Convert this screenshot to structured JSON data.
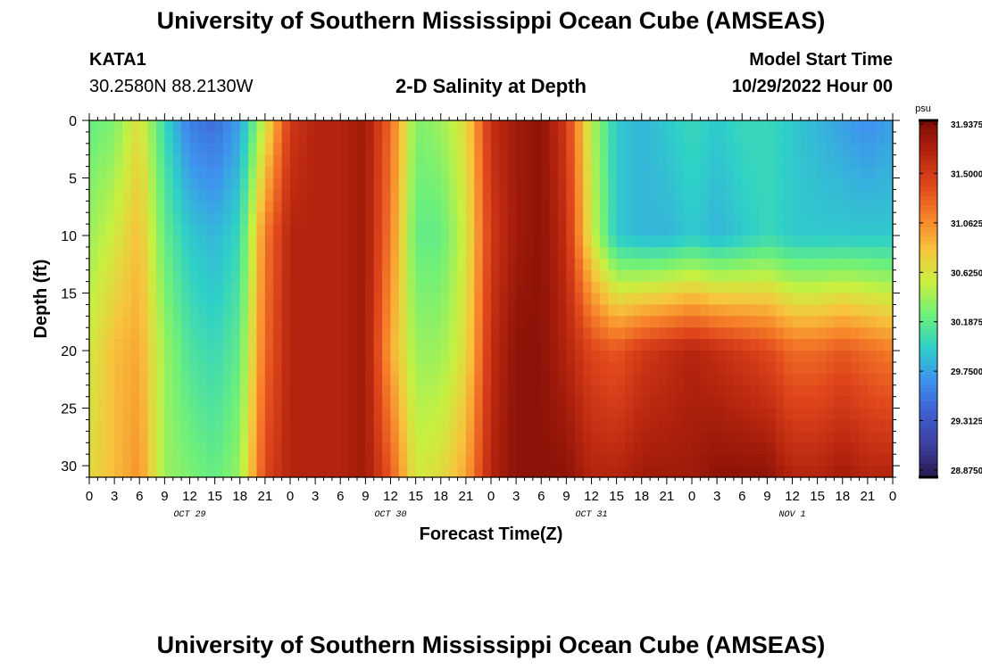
{
  "header": {
    "title": "University of Southern Mississippi Ocean Cube (AMSEAS)",
    "station": "KATA1",
    "coords": "30.2580N  88.2130W",
    "subtitle": "2-D Salinity at Depth",
    "model_start_label": "Model Start Time",
    "model_start_value": "10/29/2022 Hour 00"
  },
  "footer": {
    "title": "University of Southern Mississippi Ocean Cube (AMSEAS)"
  },
  "colors": {
    "background": "#ffffff",
    "axis": "#000000",
    "colormap": [
      "#2a1850",
      "#3c3fa0",
      "#3f5fd0",
      "#3e93ee",
      "#2ed0c8",
      "#6df07a",
      "#c8f040",
      "#f7c43c",
      "#f7822a",
      "#e0471c",
      "#b5240e",
      "#7a0b05"
    ]
  },
  "chart_data": {
    "type": "heatmap",
    "title": "2-D Salinity at Depth",
    "xlabel": "Forecast Time(Z)",
    "ylabel": "Depth (ft)",
    "x_tick_labels": [
      "0",
      "3",
      "6",
      "9",
      "12",
      "15",
      "18",
      "21",
      "0",
      "3",
      "6",
      "9",
      "12",
      "15",
      "18",
      "21",
      "0",
      "3",
      "6",
      "9",
      "12",
      "15",
      "18",
      "21",
      "0",
      "3",
      "6",
      "9",
      "12",
      "15",
      "18",
      "21",
      "0"
    ],
    "date_labels": [
      "OCT 29",
      "OCT 30",
      "OCT 31",
      "NOV 1"
    ],
    "xlim_hours": [
      0,
      96
    ],
    "y_ticks": [
      0,
      5,
      10,
      15,
      20,
      25,
      30
    ],
    "ylim_ft": [
      0,
      31
    ],
    "colorbar": {
      "unit": "psu",
      "labels": [
        "31.9375",
        "31.5000",
        "31.0625",
        "30.6250",
        "30.1875",
        "29.7500",
        "29.3125",
        "28.8750"
      ],
      "vmin": 28.7,
      "vmax": 32.1
    },
    "depth_levels_ft": [
      0,
      10,
      20,
      31
    ],
    "time_hours": [
      0,
      3,
      6,
      9,
      12,
      15,
      18,
      21,
      24,
      27,
      30,
      33,
      36,
      39,
      42,
      45,
      48,
      51,
      54,
      57,
      60,
      63,
      66,
      69,
      72,
      75,
      78,
      81,
      84,
      87,
      90,
      93,
      96
    ],
    "salinity_psu": [
      [
        30.2,
        30.3,
        30.7,
        30.0,
        29.5,
        29.4,
        29.7,
        30.6,
        31.6,
        31.8,
        31.8,
        31.9,
        31.3,
        30.3,
        30.4,
        30.7,
        31.7,
        31.9,
        32.0,
        31.6,
        30.5,
        29.9,
        29.8,
        29.9,
        30.0,
        29.9,
        30.0,
        30.0,
        29.9,
        29.8,
        29.7,
        29.6,
        29.7
      ],
      [
        30.4,
        30.6,
        30.9,
        30.2,
        29.9,
        29.8,
        30.0,
        31.2,
        31.8,
        31.8,
        31.8,
        31.9,
        31.2,
        30.2,
        30.2,
        30.6,
        31.6,
        31.9,
        32.0,
        31.7,
        30.6,
        29.9,
        29.8,
        29.8,
        29.9,
        29.8,
        29.9,
        30.0,
        29.9,
        29.9,
        29.9,
        29.9,
        29.9
      ],
      [
        30.6,
        30.9,
        31.0,
        30.4,
        30.1,
        30.0,
        30.2,
        31.3,
        31.8,
        31.8,
        31.8,
        31.9,
        31.0,
        30.4,
        30.4,
        30.7,
        31.7,
        32.0,
        32.0,
        31.8,
        31.5,
        31.4,
        31.6,
        31.7,
        31.8,
        31.7,
        31.6,
        31.5,
        31.3,
        31.3,
        31.4,
        31.3,
        31.2
      ],
      [
        30.7,
        30.9,
        31.1,
        30.4,
        30.3,
        30.2,
        30.4,
        31.5,
        31.8,
        31.8,
        31.8,
        31.9,
        31.4,
        30.6,
        30.7,
        31.0,
        31.8,
        32.0,
        32.0,
        32.0,
        31.8,
        31.8,
        31.9,
        31.9,
        31.9,
        32.0,
        32.0,
        32.0,
        31.8,
        31.8,
        31.9,
        31.8,
        31.8
      ]
    ]
  }
}
